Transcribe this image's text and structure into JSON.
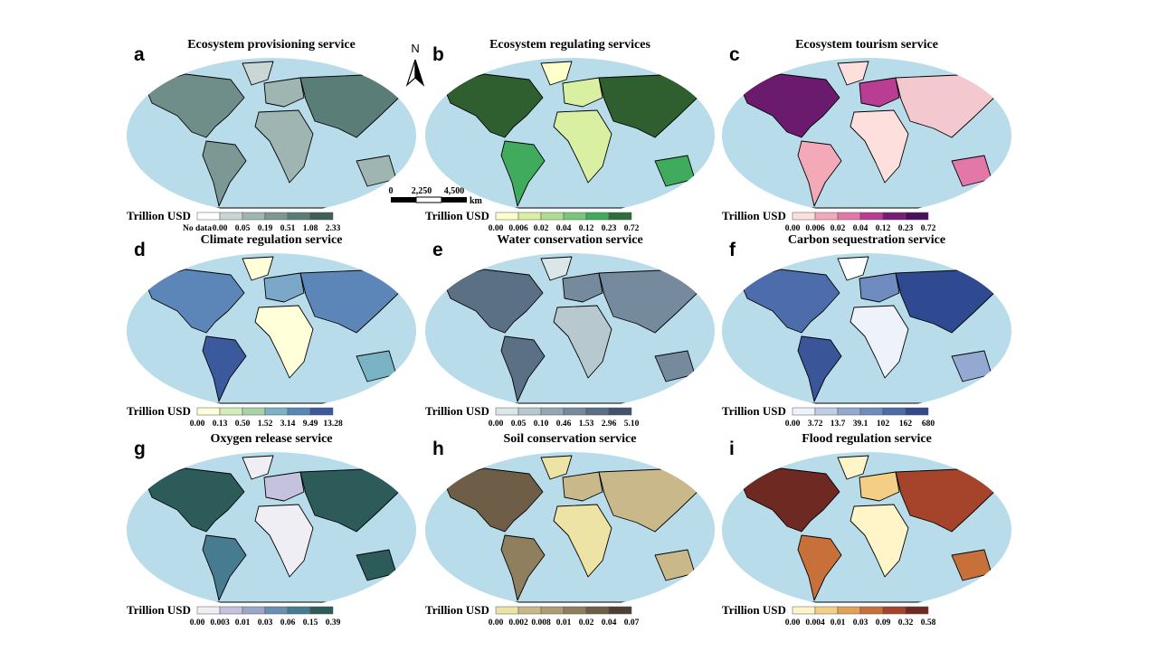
{
  "north_arrow": "N",
  "scale_bar": {
    "labels": [
      "0",
      "2,250",
      "4,500",
      "km"
    ]
  },
  "panels": [
    {
      "letter": "a",
      "title": "Ecosystem provisioning service",
      "legend": {
        "unit": "Trillion USD",
        "labels": [
          "No data",
          "0.00",
          "0.05",
          "0.19",
          "0.51",
          "1.08",
          "2.33"
        ],
        "colors": [
          "#ffffff",
          "#c9d6d4",
          "#9fb5b2",
          "#7b9894",
          "#5b7d78",
          "#3f5f58"
        ]
      },
      "region_colors": [
        "#6f8e8a",
        "#c9d6d4",
        "#7b9894",
        "#9fb5b2",
        "#9fb5b2",
        "#5b7d78",
        "#9fb5b2",
        "#ffffff"
      ]
    },
    {
      "letter": "b",
      "title": "Ecosystem regulating services",
      "legend": {
        "unit": "Trillion USD",
        "labels": [
          "0.00",
          "0.006",
          "0.02",
          "0.04",
          "0.12",
          "0.23",
          "0.72"
        ],
        "colors": [
          "#ffffcc",
          "#d9f0a3",
          "#addd8e",
          "#78c679",
          "#41ab5d",
          "#2f6e3a"
        ]
      },
      "region_colors": [
        "#2f5e2f",
        "#ffffcc",
        "#41ab5d",
        "#d9f0a3",
        "#d9f0a3",
        "#2f5e2f",
        "#41ab5d",
        "#ffffff"
      ]
    },
    {
      "letter": "c",
      "title": "Ecosystem tourism service",
      "legend": {
        "unit": "Trillion USD",
        "labels": [
          "0.00",
          "0.006",
          "0.02",
          "0.04",
          "0.12",
          "0.23",
          "0.72"
        ],
        "colors": [
          "#fde0dd",
          "#f4a9b8",
          "#e377a8",
          "#b83d93",
          "#7a1a78",
          "#4d0d5e"
        ]
      },
      "region_colors": [
        "#6a1b6e",
        "#fde0dd",
        "#f4a9b8",
        "#b83d93",
        "#fde0dd",
        "#f4c8cf",
        "#e377a8",
        "#ffffff"
      ]
    },
    {
      "letter": "d",
      "title": "Climate regulation service",
      "legend": {
        "unit": "Trillion USD",
        "labels": [
          "0.00",
          "0.13",
          "0.50",
          "1.52",
          "3.14",
          "9.49",
          "13.28"
        ],
        "colors": [
          "#ffffd9",
          "#d4ecb5",
          "#a6d3a8",
          "#79b3c4",
          "#5588b8",
          "#3b5a9e"
        ]
      },
      "region_colors": [
        "#5c86b8",
        "#ffffd9",
        "#3b5a9e",
        "#7ba7c8",
        "#ffffd9",
        "#5c86b8",
        "#79b3c4",
        "#ffffff"
      ]
    },
    {
      "letter": "e",
      "title": "Water conservation service",
      "legend": {
        "unit": "Trillion USD",
        "labels": [
          "0.00",
          "0.05",
          "0.10",
          "0.46",
          "1.53",
          "2.96",
          "5.10"
        ],
        "colors": [
          "#dbe6e8",
          "#b7c8cf",
          "#93a7b4",
          "#758a9c",
          "#5b6f85",
          "#41546c"
        ]
      },
      "region_colors": [
        "#5b6f85",
        "#dbe6e8",
        "#5b6f85",
        "#758a9c",
        "#b7c8cf",
        "#758a9c",
        "#758a9c",
        "#ffffff"
      ]
    },
    {
      "letter": "f",
      "title": "Carbon sequestration service",
      "legend": {
        "unit": "Trillion USD",
        "labels": [
          "0.00",
          "3.72",
          "13.7",
          "39.1",
          "102",
          "162",
          "680"
        ],
        "colors": [
          "#eef2fa",
          "#c0cde6",
          "#93a9d1",
          "#6f8cc0",
          "#4d6cac",
          "#2f4a90"
        ]
      },
      "region_colors": [
        "#4d6cac",
        "#ffffff",
        "#3a5598",
        "#6f8cc0",
        "#eef2fa",
        "#2f4a90",
        "#93a9d1",
        "#ffffff"
      ]
    },
    {
      "letter": "g",
      "title": "Oxygen release service",
      "legend": {
        "unit": "Trillion USD",
        "labels": [
          "0.00",
          "0.003",
          "0.01",
          "0.03",
          "0.06",
          "0.15",
          "0.39"
        ],
        "colors": [
          "#f0eef5",
          "#c4c2dc",
          "#98a8c6",
          "#6a8fb0",
          "#477c90",
          "#2d5b5a"
        ]
      },
      "region_colors": [
        "#2d5b5a",
        "#f0eef5",
        "#477c90",
        "#c4c2dc",
        "#f0eef5",
        "#2d5b5a",
        "#2d5b5a",
        "#ffffff"
      ]
    },
    {
      "letter": "h",
      "title": "Soil conservation service",
      "legend": {
        "unit": "Trillion USD",
        "labels": [
          "0.00",
          "0.002",
          "0.008",
          "0.01",
          "0.02",
          "0.04",
          "0.07"
        ],
        "colors": [
          "#ede3a5",
          "#c9b98a",
          "#ad9c74",
          "#8f7f5f",
          "#6e5e48",
          "#4e3f32"
        ]
      },
      "region_colors": [
        "#6e5e48",
        "#ede3a5",
        "#8f7f5f",
        "#c9b98a",
        "#ede3a5",
        "#c9b98a",
        "#c9b98a",
        "#ffffff"
      ]
    },
    {
      "letter": "i",
      "title": "Flood regulation service",
      "legend": {
        "unit": "Trillion USD",
        "labels": [
          "0.00",
          "0.004",
          "0.01",
          "0.03",
          "0.09",
          "0.32",
          "0.58"
        ],
        "colors": [
          "#fff5c8",
          "#f3cf85",
          "#e0a255",
          "#c8703a",
          "#a5442a",
          "#6e2a22"
        ]
      },
      "region_colors": [
        "#6e2a22",
        "#fff5c8",
        "#c8703a",
        "#f3cf85",
        "#fff5c8",
        "#a5442a",
        "#c8703a",
        "#ffffff"
      ]
    }
  ]
}
